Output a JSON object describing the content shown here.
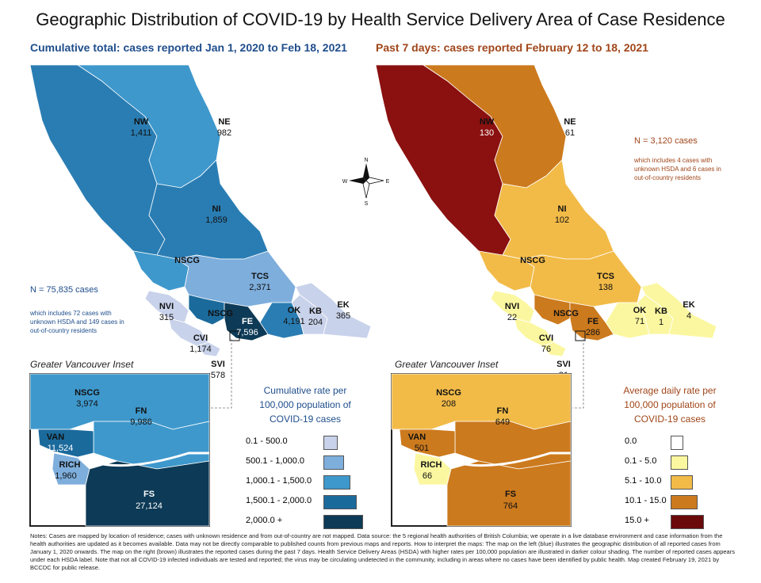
{
  "title": "Geographic Distribution of COVID-19 by Health Service Delivery Area of Case Residence",
  "left": {
    "subtitle": "Cumulative total: cases reported Jan 1, 2020 to Feb 18, 2021",
    "regions": {
      "NW": {
        "name": "NW",
        "value": "1,411",
        "color": "#2a7db3"
      },
      "NE": {
        "name": "NE",
        "value": "982",
        "color": "#3e98cc"
      },
      "NI": {
        "name": "NI",
        "value": "1,859",
        "color": "#2a7db3"
      },
      "NSCG": {
        "name": "NSCG",
        "value": "",
        "color": "#3e98cc"
      },
      "TCS": {
        "name": "TCS",
        "value": "2,371",
        "color": "#7eaedc"
      },
      "OK": {
        "name": "OK",
        "value": "4,191",
        "color": "#2a7db3"
      },
      "KB": {
        "name": "KB",
        "value": "204",
        "color": "#c8d2ea"
      },
      "EK": {
        "name": "EK",
        "value": "365",
        "color": "#c8d2ea"
      },
      "NVI": {
        "name": "NVI",
        "value": "315",
        "color": "#c8d2ea"
      },
      "CVI": {
        "name": "CVI",
        "value": "1,174",
        "color": "#c8d2ea"
      },
      "NSCG2": {
        "name": "NSCG",
        "value": "",
        "color": "#1b6a9c"
      },
      "FE": {
        "name": "FE",
        "value": "7,596",
        "color": "#0d3a56"
      },
      "SVI": {
        "name": "SVI",
        "value": "578",
        "color": "#c8d2ea"
      }
    },
    "n_count": "N = 75,835 cases",
    "n_note": "which includes 72 cases with unknown HSDA and 149 cases in out-of-country residents",
    "inset_title": "Greater Vancouver Inset",
    "inset": {
      "NSCG": {
        "name": "NSCG",
        "value": "3,974"
      },
      "FN": {
        "name": "FN",
        "value": "9,986"
      },
      "VAN": {
        "name": "VAN",
        "value": "11,524"
      },
      "RICH": {
        "name": "RICH",
        "value": "1,960"
      },
      "FS": {
        "name": "FS",
        "value": "27,124"
      }
    },
    "legend_title": "Cumulative rate per 100,000 population of COVID-19 cases",
    "legend": [
      {
        "label": "0.1 - 500.0",
        "color": "#c8d2ea"
      },
      {
        "label": "500.1 - 1,000.0",
        "color": "#7eaedc"
      },
      {
        "label": "1,000.1 - 1,500.0",
        "color": "#3e98cc"
      },
      {
        "label": "1,500.1 - 2,000.0",
        "color": "#1b6a9c"
      },
      {
        "label": "2,000.0 +",
        "color": "#0d3a56"
      }
    ]
  },
  "right": {
    "subtitle": "Past 7 days: cases reported February 12 to 18, 2021",
    "regions": {
      "NW": {
        "name": "NW",
        "value": "130",
        "color": "#8b1010"
      },
      "NE": {
        "name": "NE",
        "value": "61",
        "color": "#cc7a1e"
      },
      "NI": {
        "name": "NI",
        "value": "102",
        "color": "#f2bb48"
      },
      "NSCG": {
        "name": "NSCG",
        "value": "",
        "color": "#f2bb48"
      },
      "TCS": {
        "name": "TCS",
        "value": "138",
        "color": "#f2bb48"
      },
      "OK": {
        "name": "OK",
        "value": "71",
        "color": "#fbf7a0"
      },
      "KB": {
        "name": "KB",
        "value": "1",
        "color": "#fbf7a0"
      },
      "EK": {
        "name": "EK",
        "value": "4",
        "color": "#fbf7a0"
      },
      "NVI": {
        "name": "NVI",
        "value": "22",
        "color": "#fbf7a0"
      },
      "CVI": {
        "name": "CVI",
        "value": "76",
        "color": "#fbf7a0"
      },
      "NSCG2": {
        "name": "NSCG",
        "value": "",
        "color": "#cc7a1e"
      },
      "FE": {
        "name": "FE",
        "value": "286",
        "color": "#cc7a1e"
      },
      "SVI": {
        "name": "SVI",
        "value": "31",
        "color": "#fbf7a0"
      }
    },
    "n_count": "N = 3,120 cases",
    "n_note": "which includes 4 cases with unknown HSDA and 6 cases in out-of-country residents",
    "inset_title": "Greater Vancouver Inset",
    "inset": {
      "NSCG": {
        "name": "NSCG",
        "value": "208"
      },
      "FN": {
        "name": "FN",
        "value": "649"
      },
      "VAN": {
        "name": "VAN",
        "value": "501"
      },
      "RICH": {
        "name": "RICH",
        "value": "66"
      },
      "FS": {
        "name": "FS",
        "value": "764"
      }
    },
    "legend_title": "Average daily rate per 100,000 population of COVID-19 cases",
    "legend": [
      {
        "label": "0.0",
        "color": "#ffffff"
      },
      {
        "label": "0.1 - 5.0",
        "color": "#fbf7a0"
      },
      {
        "label": "5.1 - 10.0",
        "color": "#f2bb48"
      },
      {
        "label": "10.1 - 15.0",
        "color": "#cc7a1e"
      },
      {
        "label": "15.0 +",
        "color": "#6b0a0a"
      }
    ]
  },
  "compass": {
    "n": "N",
    "s": "S",
    "e": "E",
    "w": "W"
  },
  "notes": "Notes: Cases are mapped by location of residence; cases with unknown residence and from out-of-country are not mapped. Data source: the 5 regional health authorities of British Columbia; we operate in a live database environment and case information from the health authorities are updated as it becomes available. Data may not be directly comparable to published counts from previous maps and reports. How to interpret the maps: The map on the left (blue) illustrates the geographic distribution of all reported cases from January 1, 2020 onwards. The map on the right (brown) illustrates the reported cases during the past 7 days. Health Service Delivery Areas (HSDA) with higher rates per 100,000 population are illustrated in darker colour shading. The number of reported cases appears under each HSDA label. Note that not all COVID-19 infected individuals are tested and reported; the virus may be circulating undetected in the community, including in areas where no cases have been identified by public health. Map created February 19, 2021 by BCCDC for public release."
}
